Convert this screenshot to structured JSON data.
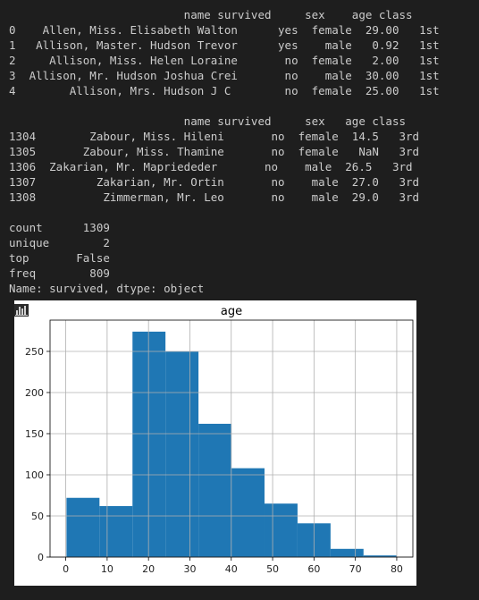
{
  "console": {
    "head_lines": [
      "                          name survived     sex    age class",
      "0    Allen, Miss. Elisabeth Walton      yes  female  29.00   1st",
      "1   Allison, Master. Hudson Trevor      yes    male   0.92   1st",
      "2     Allison, Miss. Helen Loraine       no  female   2.00   1st",
      "3  Allison, Mr. Hudson Joshua Crei       no    male  30.00   1st",
      "4        Allison, Mrs. Hudson J C        no  female  25.00   1st"
    ],
    "tail_lines": [
      "                          name survived     sex   age class",
      "1304        Zabour, Miss. Hileni       no  female  14.5   3rd",
      "1305       Zabour, Miss. Thamine       no  female   NaN   3rd",
      "1306  Zakarian, Mr. Mapriededer       no    male  26.5   3rd",
      "1307         Zakarian, Mr. Ortin       no    male  27.0   3rd",
      "1308          Zimmerman, Mr. Leo       no    male  29.0   3rd"
    ],
    "describe_lines": [
      "count      1309",
      "unique        2",
      "top       False",
      "freq        809",
      "Name: survived, dtype: object"
    ]
  },
  "chart_icon": "bar-chart-icon",
  "colors": {
    "background": "#1e1e1e",
    "text": "#cccccc",
    "bar": "#1f77b4",
    "grid": "#b0b0b0"
  },
  "chart_data": {
    "type": "bar",
    "title": "age",
    "xlabel": "",
    "ylabel": "",
    "bins": [
      {
        "start": 0.17,
        "end": 8.15,
        "count": 72
      },
      {
        "start": 8.15,
        "end": 16.13,
        "count": 62
      },
      {
        "start": 16.13,
        "end": 24.1,
        "count": 274
      },
      {
        "start": 24.1,
        "end": 32.08,
        "count": 250
      },
      {
        "start": 32.08,
        "end": 40.06,
        "count": 162
      },
      {
        "start": 40.06,
        "end": 48.04,
        "count": 108
      },
      {
        "start": 48.04,
        "end": 56.02,
        "count": 65
      },
      {
        "start": 56.02,
        "end": 64.0,
        "count": 41
      },
      {
        "start": 64.0,
        "end": 71.97,
        "count": 10
      },
      {
        "start": 71.97,
        "end": 79.95,
        "count": 2
      }
    ],
    "xlim": [
      -3.8,
      83.9
    ],
    "ylim": [
      0,
      288
    ],
    "xticks": [
      0,
      10,
      20,
      30,
      40,
      50,
      60,
      70,
      80
    ],
    "yticks": [
      0,
      50,
      100,
      150,
      200,
      250
    ],
    "grid": true
  }
}
